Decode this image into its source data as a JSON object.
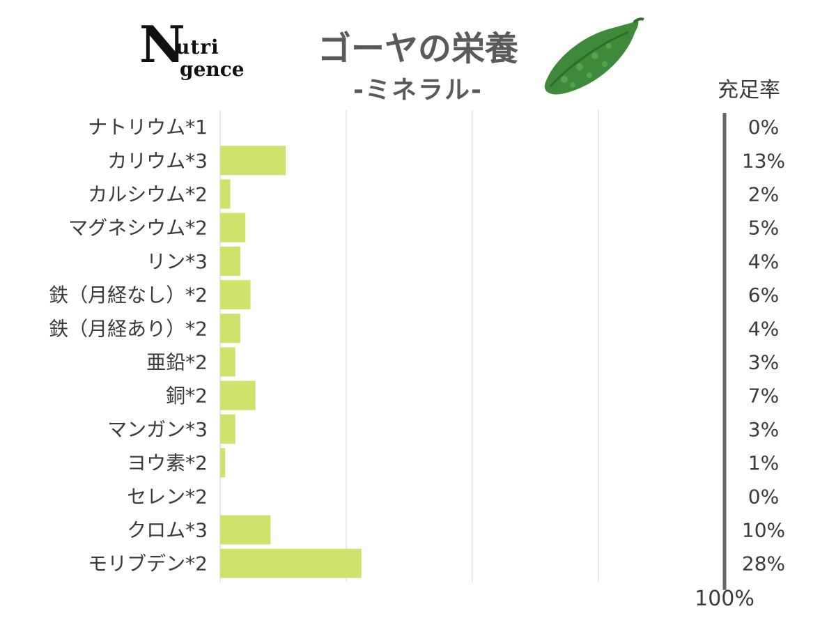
{
  "logo": {
    "letter": "N",
    "line1": "utri",
    "line2": "gence"
  },
  "header": {
    "title": "ゴーヤの栄養",
    "subtitle": "-ミネラル-",
    "icon": "bitter-gourd-icon",
    "rate_label": "充足率"
  },
  "chart_data": {
    "type": "bar",
    "orientation": "horizontal",
    "title": "ゴーヤの栄養",
    "subtitle": "-ミネラル-",
    "value_label": "充足率",
    "categories": [
      "ナトリウム*1",
      "カリウム*3",
      "カルシウム*2",
      "マグネシウム*2",
      "リン*3",
      "鉄（月経なし）*2",
      "鉄（月経あり）*2",
      "亜鉛*2",
      "銅*2",
      "マンガン*3",
      "ヨウ素*2",
      "セレン*2",
      "クロム*3",
      "モリブデン*2"
    ],
    "values": [
      0,
      13,
      2,
      5,
      4,
      6,
      4,
      3,
      7,
      3,
      1,
      0,
      10,
      28
    ],
    "value_labels": [
      "0%",
      "13%",
      "2%",
      "5%",
      "4%",
      "6%",
      "4%",
      "3%",
      "7%",
      "3%",
      "1%",
      "0%",
      "10%",
      "28%"
    ],
    "xlim": [
      0,
      100
    ],
    "total_label": "100%",
    "grid": true,
    "bar_color": "#cde36b"
  }
}
